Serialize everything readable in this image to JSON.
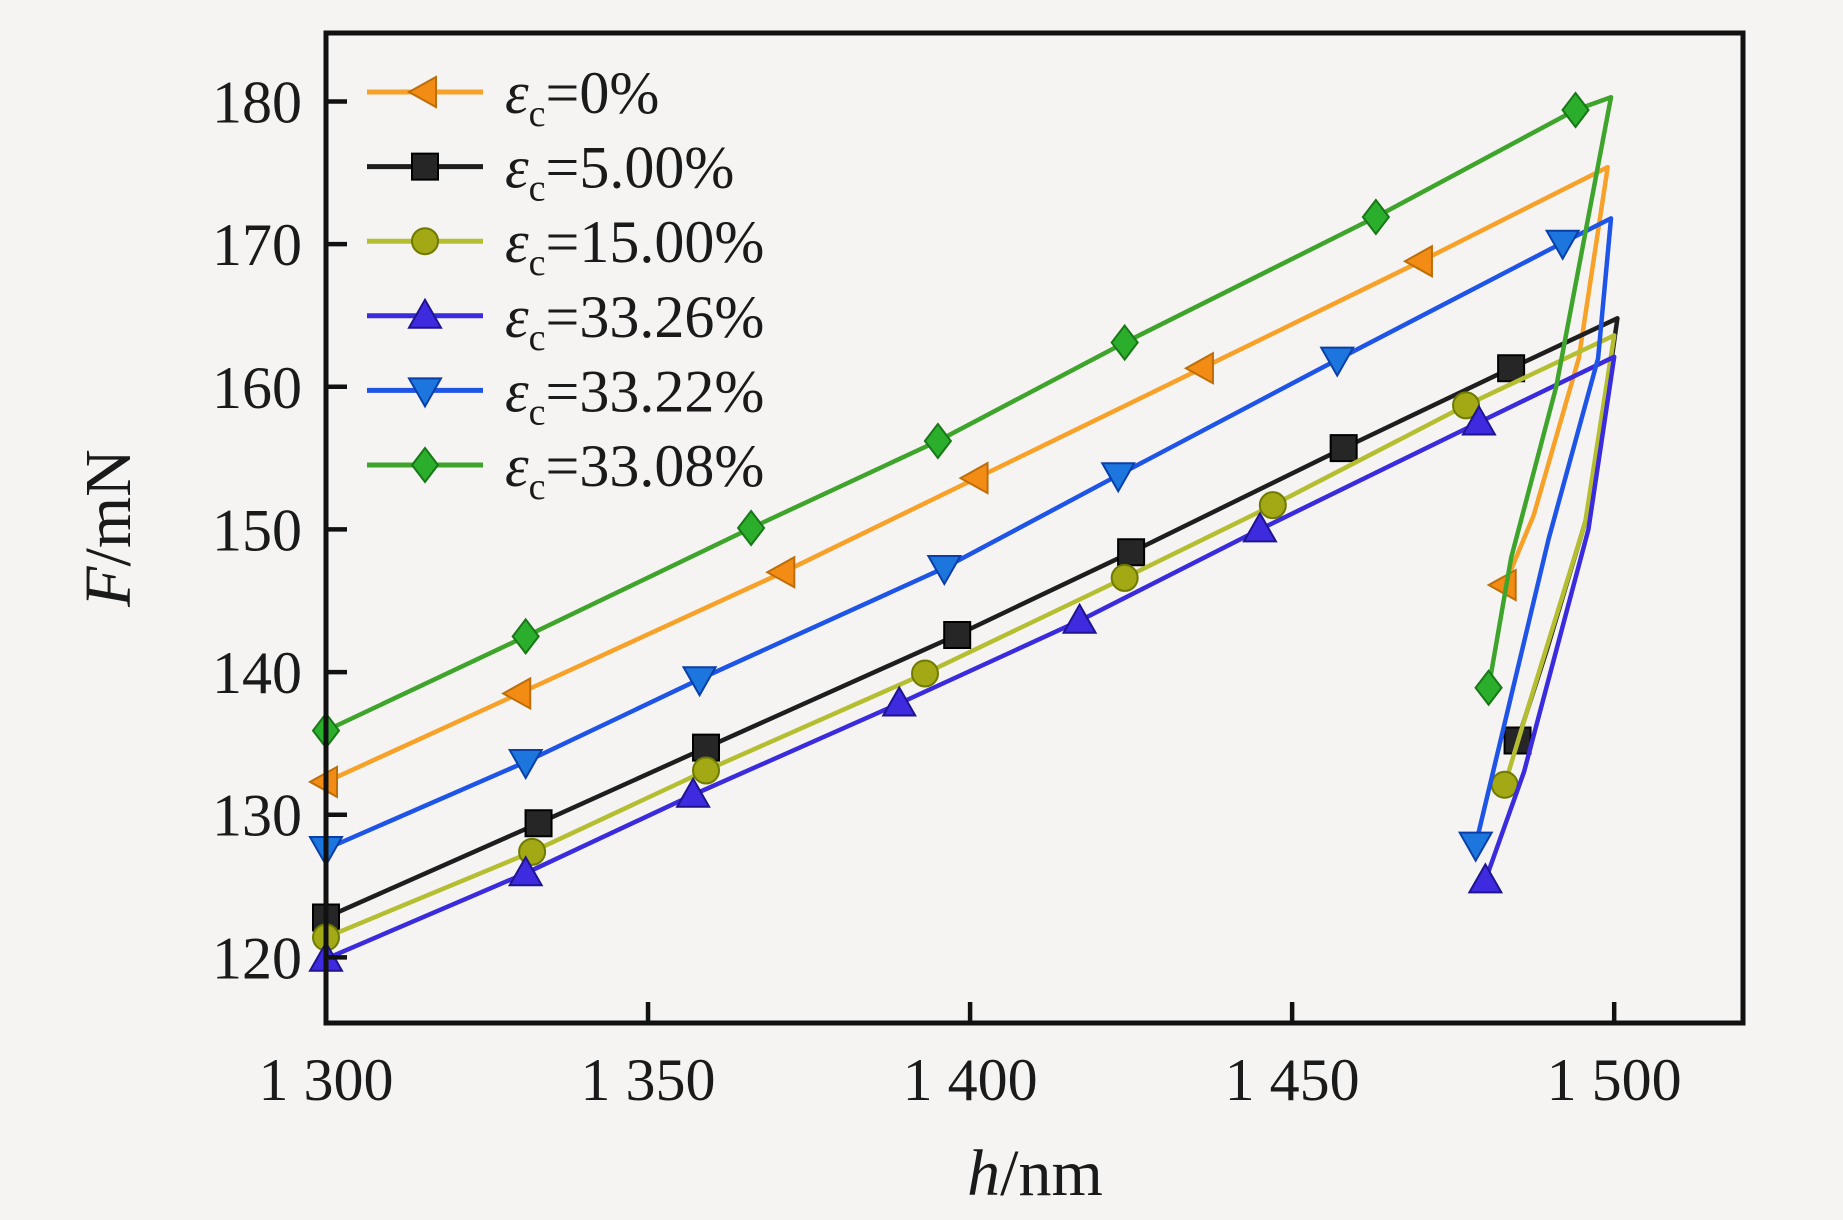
{
  "figure": {
    "background": "#f5f4f2",
    "frame_color": "#111111",
    "text_color": "#1a1a1a"
  },
  "chart_data": {
    "type": "line",
    "title": "",
    "xlabel_symbol": "h",
    "xlabel_unit": "/nm",
    "ylabel_symbol": "F",
    "ylabel_unit": "/mN",
    "xlim": [
      1300,
      1520
    ],
    "ylim": [
      115.4,
      184.8
    ],
    "grid": false,
    "legend_position": "top-left-inside",
    "x_ticks": [
      {
        "v": 1350,
        "label": "1 350"
      },
      {
        "v": 1400,
        "label": "1 400"
      },
      {
        "v": 1450,
        "label": "1 450"
      },
      {
        "v": 1500,
        "label": "1 500"
      }
    ],
    "x_tick_labels_extra": [
      {
        "v": 1300,
        "label": "1 300"
      }
    ],
    "y_ticks": [
      {
        "v": 120,
        "label": "120"
      },
      {
        "v": 130,
        "label": "130"
      },
      {
        "v": 140,
        "label": "140"
      },
      {
        "v": 150,
        "label": "150"
      },
      {
        "v": 160,
        "label": "160"
      },
      {
        "v": 170,
        "label": "170"
      },
      {
        "v": 180,
        "label": "180"
      }
    ],
    "series": [
      {
        "legend": {
          "prefix": "ε",
          "sub": "c",
          "value": "=0%"
        },
        "marker": "triangle-left",
        "line_color": "#F7A128",
        "marker_color": "#F28C15",
        "edge_color": "#BE6E08",
        "loading": [
          [
            1300,
            132.3
          ],
          [
            1330,
            138.5
          ],
          [
            1371,
            147.0
          ],
          [
            1401,
            153.6
          ],
          [
            1436,
            161.3
          ],
          [
            1470,
            168.8
          ]
        ],
        "peak": [
          1499,
          175.4
        ],
        "unload": [
          [
            1494.5,
            162.0
          ],
          [
            1487.5,
            151.0
          ],
          [
            1483,
            146.1
          ]
        ]
      },
      {
        "legend": {
          "prefix": "ε",
          "sub": "c",
          "value": "=5.00%"
        },
        "marker": "square",
        "line_color": "#1E1E1E",
        "marker_color": "#262626",
        "edge_color": "#000000",
        "loading": [
          [
            1300,
            122.8
          ],
          [
            1333,
            129.4
          ],
          [
            1359,
            134.7
          ],
          [
            1398,
            142.6
          ],
          [
            1425,
            148.4
          ],
          [
            1458,
            155.7
          ],
          [
            1484,
            161.3
          ]
        ],
        "peak": [
          1500.5,
          164.8
        ],
        "unload": [
          [
            1496.5,
            152.0
          ],
          [
            1489.5,
            141.5
          ],
          [
            1485,
            135.2
          ]
        ]
      },
      {
        "legend": {
          "prefix": "ε",
          "sub": "c",
          "value": "=15.00%"
        },
        "marker": "circle",
        "line_color": "#B4BE30",
        "marker_color": "#A3A915",
        "edge_color": "#6F7A00",
        "loading": [
          [
            1300,
            121.4
          ],
          [
            1332,
            127.4
          ],
          [
            1359,
            133.1
          ],
          [
            1393,
            139.9
          ],
          [
            1424,
            146.6
          ],
          [
            1447,
            151.7
          ],
          [
            1477,
            158.7
          ]
        ],
        "peak": [
          1500,
          163.6
        ],
        "unload": [
          [
            1495.5,
            150.5
          ],
          [
            1487.5,
            138.8
          ],
          [
            1483,
            132.1
          ]
        ]
      },
      {
        "legend": {
          "prefix": "ε",
          "sub": "c",
          "value": "=33.26%"
        },
        "marker": "triangle-up",
        "line_color": "#3A2BDC",
        "marker_color": "#3E2BE0",
        "edge_color": "#1F1490",
        "loading": [
          [
            1300,
            119.9
          ],
          [
            1331,
            125.9
          ],
          [
            1357,
            131.4
          ],
          [
            1389,
            137.8
          ],
          [
            1417,
            143.6
          ],
          [
            1445,
            150.0
          ],
          [
            1479,
            157.5
          ]
        ],
        "peak": [
          1500,
          162.1
        ],
        "unload": [
          [
            1496,
            150.0
          ],
          [
            1486,
            133.0
          ],
          [
            1480,
            125.4
          ]
        ]
      },
      {
        "legend": {
          "prefix": "ε",
          "sub": "c",
          "value": "=33.22%"
        },
        "marker": "triangle-down",
        "line_color": "#1F55E6",
        "marker_color": "#1C76DD",
        "edge_color": "#0A3FA8",
        "loading": [
          [
            1300,
            127.6
          ],
          [
            1331,
            133.7
          ],
          [
            1358,
            139.5
          ],
          [
            1396,
            147.3
          ],
          [
            1423,
            153.8
          ],
          [
            1457,
            161.9
          ],
          [
            1492,
            170.1
          ]
        ],
        "peak": [
          1499.5,
          171.8
        ],
        "unload": [
          [
            1497.5,
            162.0
          ],
          [
            1489.8,
            149.3
          ],
          [
            1478.5,
            127.9
          ]
        ]
      },
      {
        "legend": {
          "prefix": "ε",
          "sub": "c",
          "value": "=33.08%"
        },
        "marker": "diamond",
        "line_color": "#3FA42C",
        "marker_color": "#2BAE2B",
        "edge_color": "#187818",
        "loading": [
          [
            1300,
            135.9
          ],
          [
            1331,
            142.5
          ],
          [
            1366,
            150.1
          ],
          [
            1395,
            156.2
          ],
          [
            1424,
            163.1
          ],
          [
            1463,
            171.9
          ],
          [
            1494,
            179.4
          ]
        ],
        "peak": [
          1499.5,
          180.3
        ],
        "unload": [
          [
            1491,
            160.0
          ],
          [
            1484,
            148.0
          ],
          [
            1480.5,
            138.9
          ]
        ]
      }
    ]
  }
}
